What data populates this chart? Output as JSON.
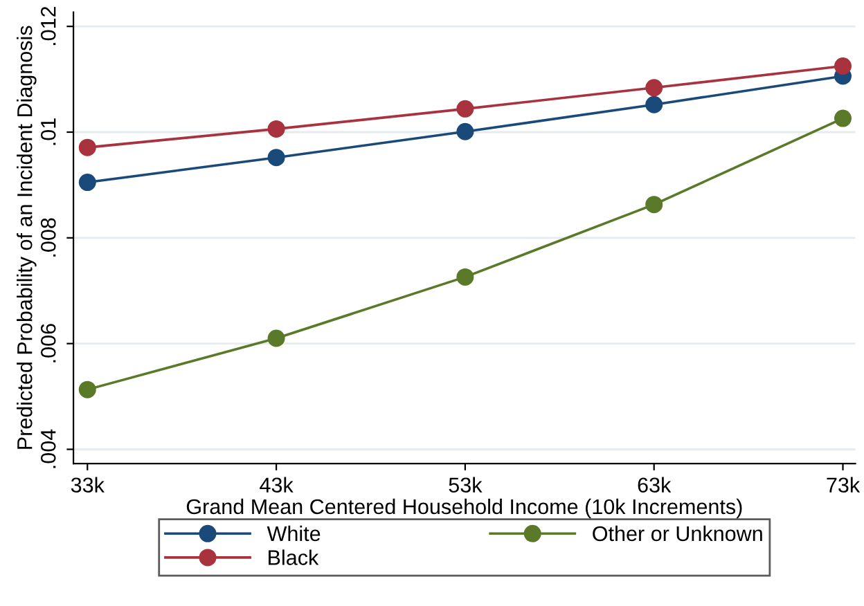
{
  "chart_data": {
    "type": "line",
    "xlabel": "Grand Mean Centered Household Income (10k Increments)",
    "ylabel": "Predicted Probability of an Incident Diagnosis",
    "categories": [
      "33k",
      "43k",
      "53k",
      "63k",
      "73k"
    ],
    "series": [
      {
        "name": "White",
        "color": "#1a4a7a",
        "values": [
          0.00905,
          0.00952,
          0.01001,
          0.01052,
          0.01106
        ]
      },
      {
        "name": "Black",
        "color": "#a8323e",
        "values": [
          0.00971,
          0.01006,
          0.01044,
          0.01084,
          0.01125
        ]
      },
      {
        "name": "Other or Unknown",
        "color": "#5a7a2a",
        "values": [
          0.00513,
          0.0061,
          0.00726,
          0.00863,
          0.01026
        ]
      }
    ],
    "ylim": [
      0.00373,
      0.01227
    ],
    "yticks": [
      {
        "value": 0.004,
        "label": ".004"
      },
      {
        "value": 0.006,
        "label": ".006"
      },
      {
        "value": 0.008,
        "label": ".008"
      },
      {
        "value": 0.01,
        "label": ".01"
      },
      {
        "value": 0.012,
        "label": ".012"
      }
    ],
    "grid": "y",
    "legend": "bottom",
    "marker": "circle",
    "line_style": "solid"
  }
}
